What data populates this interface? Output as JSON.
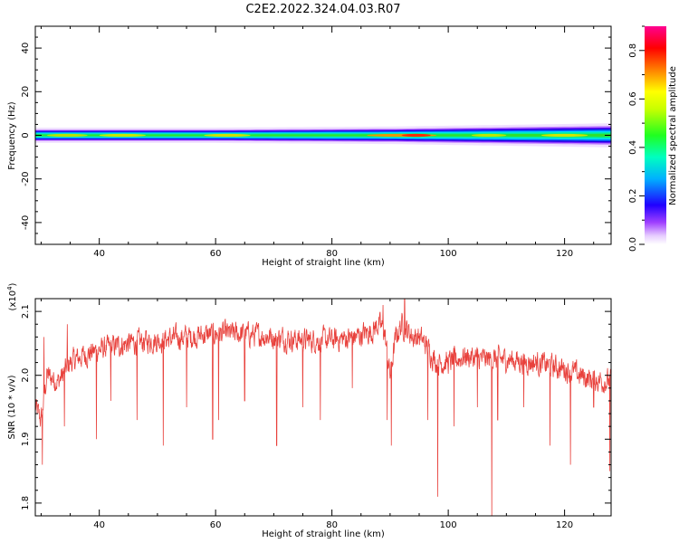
{
  "title": "C2E2.2022.324.04.03.R07",
  "chart_data": [
    {
      "type": "heatmap",
      "xlabel": "Height of straight line (km)",
      "ylabel": "Frequency (Hz)",
      "xlim": [
        29,
        128
      ],
      "ylim": [
        -50,
        50
      ],
      "xticks": [
        40,
        60,
        80,
        100,
        120
      ],
      "yticks": [
        -40,
        -20,
        0,
        20,
        40
      ],
      "colorbar": {
        "label": "Normalized spectral amplitude",
        "range": [
          0.0,
          0.9
        ],
        "ticks": [
          "0.0",
          "0.2",
          "0.4",
          "0.6",
          "0.8"
        ]
      },
      "band": {
        "center_frequency_hz": 0,
        "half_width_hz": [
          [
            29,
            3
          ],
          [
            60,
            3
          ],
          [
            90,
            3.5
          ],
          [
            128,
            5
          ]
        ],
        "peak_amplitude": [
          [
            29,
            0.8
          ],
          [
            40,
            0.75
          ],
          [
            60,
            0.65
          ],
          [
            80,
            0.6
          ],
          [
            95,
            0.85
          ],
          [
            110,
            0.6
          ],
          [
            128,
            0.5
          ]
        ]
      }
    },
    {
      "type": "line",
      "xlabel": "Height of straight line (km)",
      "ylabel": "SNR (10 * v/v)",
      "y_multiplier": "(x10",
      "y_multiplier_exp": "4",
      "y_multiplier_close": ")",
      "xlim": [
        29,
        128
      ],
      "ylim": [
        1.78,
        2.12
      ],
      "xticks": [
        40,
        60,
        80,
        100,
        120
      ],
      "yticks": [
        "1.8",
        "1.9",
        "2.0",
        "2.1"
      ],
      "color": "#e8413c",
      "trend": {
        "x": [
          29,
          30,
          31,
          33,
          35,
          37,
          40,
          45,
          50,
          55,
          60,
          65,
          70,
          75,
          80,
          84,
          87,
          88,
          89,
          90,
          91,
          92,
          93,
          94,
          95,
          96,
          98,
          100,
          103,
          106,
          110,
          115,
          120,
          124,
          128
        ],
        "y": [
          1.95,
          1.93,
          2.0,
          1.99,
          2.02,
          2.03,
          2.04,
          2.05,
          2.055,
          2.06,
          2.065,
          2.065,
          2.06,
          2.055,
          2.055,
          2.06,
          2.07,
          2.08,
          2.07,
          2.0,
          2.06,
          2.08,
          2.07,
          2.06,
          2.06,
          2.05,
          2.02,
          2.02,
          2.03,
          2.025,
          2.025,
          2.02,
          2.01,
          1.995,
          1.99
        ]
      },
      "dips": [
        {
          "x": 30.2,
          "y": 1.86
        },
        {
          "x": 34,
          "y": 1.92
        },
        {
          "x": 39.5,
          "y": 1.9
        },
        {
          "x": 42,
          "y": 1.96
        },
        {
          "x": 46.5,
          "y": 1.93
        },
        {
          "x": 51,
          "y": 1.89
        },
        {
          "x": 55,
          "y": 1.95
        },
        {
          "x": 59.5,
          "y": 1.9
        },
        {
          "x": 60.5,
          "y": 1.93
        },
        {
          "x": 65,
          "y": 1.96
        },
        {
          "x": 70.5,
          "y": 1.89
        },
        {
          "x": 75,
          "y": 1.95
        },
        {
          "x": 78,
          "y": 1.93
        },
        {
          "x": 83.5,
          "y": 1.98
        },
        {
          "x": 89.5,
          "y": 1.93
        },
        {
          "x": 90.2,
          "y": 1.89
        },
        {
          "x": 96.5,
          "y": 1.93
        },
        {
          "x": 98.2,
          "y": 1.81
        },
        {
          "x": 101,
          "y": 1.92
        },
        {
          "x": 105,
          "y": 1.95
        },
        {
          "x": 107.5,
          "y": 1.78
        },
        {
          "x": 108.5,
          "y": 1.93
        },
        {
          "x": 113,
          "y": 1.95
        },
        {
          "x": 117.5,
          "y": 1.89
        },
        {
          "x": 121,
          "y": 1.86
        },
        {
          "x": 125,
          "y": 1.95
        },
        {
          "x": 127.8,
          "y": 1.85
        }
      ],
      "spikes": [
        {
          "x": 30.5,
          "y": 2.06
        },
        {
          "x": 34.5,
          "y": 2.08
        },
        {
          "x": 88.8,
          "y": 2.11
        },
        {
          "x": 92.5,
          "y": 2.12
        }
      ]
    }
  ]
}
